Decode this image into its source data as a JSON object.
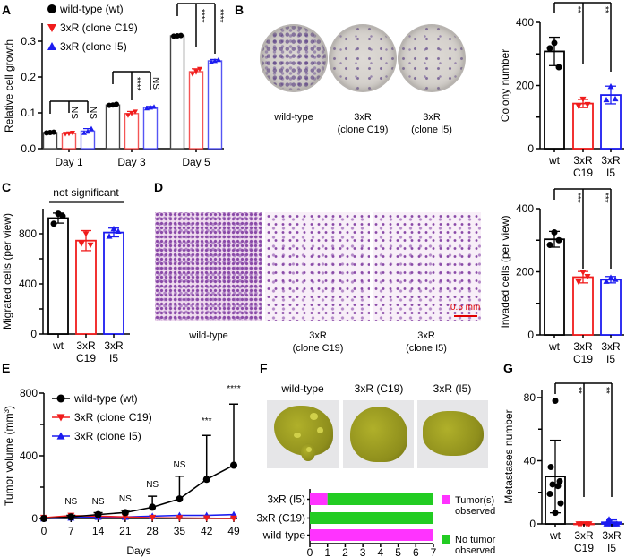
{
  "panel_labels": {
    "A": "A",
    "B": "B",
    "C": "C",
    "D": "D",
    "E": "E",
    "F": "F",
    "G": "G"
  },
  "images": {
    "B": {
      "labels": [
        [
          "wild-type"
        ],
        [
          "3xR",
          "(clone C19)"
        ],
        [
          "3xR",
          "(clone I5)"
        ]
      ]
    },
    "D": {
      "labels": [
        [
          "wild-type"
        ],
        [
          "3xR",
          "(clone C19)"
        ],
        [
          "3xR",
          "(clone I5)"
        ]
      ],
      "scale_bar": "0.5 mm",
      "scale_bar_color": "#e00000"
    },
    "F": {
      "titles": [
        "wild-type",
        "3xR (C19)",
        "3xR (I5)"
      ]
    }
  },
  "colors": {
    "wt": "#000000",
    "c19": "#f01c1c",
    "i5": "#1c1cf0",
    "tumor": "#ff33ff",
    "no_tumor": "#22cc22"
  },
  "chart_data": [
    {
      "id": "A",
      "type": "bar",
      "categories": [
        "Day 1",
        "Day 3",
        "Day 5"
      ],
      "ylabel": "Relative cell growth",
      "ylim": [
        0,
        0.35
      ],
      "yticks": [
        "0.0",
        "0.1",
        "0.2",
        "0.3"
      ],
      "ytick_values": [
        0,
        0.1,
        0.2,
        0.3
      ],
      "legend": "top-left",
      "series": [
        {
          "name": "wild-type (wt)",
          "color": "#000000",
          "marker": "circle",
          "values": [
            0.045,
            0.122,
            0.315
          ],
          "sd": [
            0.002,
            0.002,
            0.002
          ],
          "points": [
            [
              0.044,
              0.046,
              0.045
            ],
            [
              0.121,
              0.124,
              0.122
            ],
            [
              0.314,
              0.316,
              0.315
            ]
          ]
        },
        {
          "name": "3xR (clone C19)",
          "color": "#f01c1c",
          "marker": "triangle-down",
          "values": [
            0.042,
            0.098,
            0.215
          ],
          "sd": [
            0.003,
            0.006,
            0.008
          ],
          "points": [
            [
              0.041,
              0.044,
              0.042
            ],
            [
              0.093,
              0.103,
              0.099
            ],
            [
              0.208,
              0.222,
              0.216
            ]
          ]
        },
        {
          "name": "3xR (clone I5)",
          "color": "#1c1cf0",
          "marker": "triangle-up",
          "values": [
            0.049,
            0.115,
            0.245
          ],
          "sd": [
            0.007,
            0.003,
            0.004
          ],
          "points": [
            [
              0.044,
              0.056,
              0.048
            ],
            [
              0.113,
              0.117,
              0.115
            ],
            [
              0.242,
              0.248,
              0.245
            ]
          ]
        }
      ],
      "significance": [
        [
          "NS",
          "NS"
        ],
        [
          "****",
          "NS"
        ],
        [
          "****",
          "****"
        ]
      ]
    },
    {
      "id": "B",
      "type": "bar",
      "categories": [
        [
          "wt"
        ],
        [
          "3xR",
          "C19"
        ],
        [
          "3xR",
          "I5"
        ]
      ],
      "ylabel": "Colony number",
      "ylim": [
        0,
        400
      ],
      "yticks": [
        "0",
        "200",
        "400"
      ],
      "ytick_values": [
        0,
        200,
        400
      ],
      "colors": [
        "#000000",
        "#f01c1c",
        "#1c1cf0"
      ],
      "markers": [
        "circle",
        "triangle-down",
        "triangle-up"
      ],
      "values": [
        308,
        143,
        170
      ],
      "sd": [
        45,
        13,
        28
      ],
      "points": [
        [
          335,
          318,
          258
        ],
        [
          157,
          135,
          140
        ],
        [
          197,
          155,
          158
        ]
      ],
      "significance": [
        "**",
        "**"
      ]
    },
    {
      "id": "C",
      "type": "bar",
      "categories": [
        [
          "wt"
        ],
        [
          "3xR",
          "C19"
        ],
        [
          "3xR",
          "I5"
        ]
      ],
      "ylabel": "Migrated cells (per view)",
      "ylim": [
        0,
        1000
      ],
      "yticks": [
        "0",
        "400",
        "800"
      ],
      "ytick_values": [
        0,
        400,
        800
      ],
      "colors": [
        "#000000",
        "#f01c1c",
        "#1c1cf0"
      ],
      "markers": [
        "circle",
        "triangle-down",
        "triangle-up"
      ],
      "values": [
        925,
        745,
        810
      ],
      "sd": [
        40,
        80,
        35
      ],
      "points": [
        [
          960,
          880,
          940
        ],
        [
          800,
          720,
          710
        ],
        [
          840,
          780,
          820
        ]
      ],
      "significance_label": "not significant"
    },
    {
      "id": "D",
      "type": "bar",
      "categories": [
        [
          "wt"
        ],
        [
          "3xR",
          "C19"
        ],
        [
          "3xR",
          "I5"
        ]
      ],
      "ylabel": "Invaded cells (per view)",
      "ylim": [
        0,
        400
      ],
      "yticks": [
        "0",
        "200",
        "400"
      ],
      "ytick_values": [
        0,
        200,
        400
      ],
      "colors": [
        "#000000",
        "#f01c1c",
        "#1c1cf0"
      ],
      "markers": [
        "circle",
        "triangle-down",
        "triangle-up"
      ],
      "values": [
        303,
        183,
        175
      ],
      "sd": [
        25,
        18,
        10
      ],
      "points": [
        [
          325,
          285,
          300
        ],
        [
          198,
          168,
          185
        ],
        [
          182,
          170,
          176
        ]
      ],
      "significance": [
        "***",
        "***"
      ]
    },
    {
      "id": "E",
      "type": "line",
      "x": [
        0,
        7,
        14,
        21,
        28,
        35,
        42,
        49
      ],
      "xlabel": "Days",
      "ylabel": "Tumor volume (mm",
      "ylabel_sup": "3",
      "ylabel_end": ")",
      "ylim": [
        0,
        800
      ],
      "yticks": [
        "0",
        "400",
        "800"
      ],
      "ytick_values": [
        0,
        400,
        800
      ],
      "xticks": [
        "0",
        "7",
        "14",
        "21",
        "28",
        "35",
        "42",
        "49"
      ],
      "legend": "top-left",
      "series": [
        {
          "name": "wild-type (wt)",
          "color": "#000000",
          "marker": "circle",
          "values": [
            0,
            10,
            25,
            38,
            72,
            125,
            250,
            340
          ],
          "sd": [
            0,
            10,
            12,
            15,
            70,
            145,
            280,
            390
          ]
        },
        {
          "name": "3xR (clone C19)",
          "color": "#f01c1c",
          "marker": "triangle-down",
          "values": [
            5,
            18,
            15,
            10,
            5,
            3,
            2,
            0
          ]
        },
        {
          "name": "3xR (clone I5)",
          "color": "#1c1cf0",
          "marker": "triangle-up",
          "values": [
            0,
            5,
            10,
            10,
            15,
            20,
            20,
            25
          ]
        }
      ],
      "significance": [
        "",
        "NS",
        "NS",
        "NS",
        "NS",
        "NS",
        "***",
        "****"
      ]
    },
    {
      "id": "F",
      "type": "bar",
      "orientation": "horizontal",
      "stacked": true,
      "categories": [
        "3xR (I5)",
        "3xR (C19)",
        "wild-type"
      ],
      "xlim": [
        0,
        7
      ],
      "xticks": [
        "0",
        "1",
        "2",
        "3",
        "4",
        "5",
        "6",
        "7"
      ],
      "legend": "right",
      "series": [
        {
          "name": [
            "Tumor(s)",
            "observed"
          ],
          "color": "#ff33ff",
          "values": [
            1,
            0,
            7
          ]
        },
        {
          "name": [
            "No tumor",
            "observed"
          ],
          "color": "#22cc22",
          "values": [
            6,
            7,
            0
          ]
        }
      ]
    },
    {
      "id": "G",
      "type": "bar",
      "categories": [
        [
          "wt"
        ],
        [
          "3xR",
          "C19"
        ],
        [
          "3xR",
          "I5"
        ]
      ],
      "ylabel": "Metastases number",
      "ylim": [
        0,
        85
      ],
      "yticks": [
        "0",
        "40",
        "80"
      ],
      "ytick_values": [
        0,
        40,
        80
      ],
      "colors": [
        "#000000",
        "#f01c1c",
        "#1c1cf0"
      ],
      "markers": [
        "circle",
        "triangle-down",
        "triangle-up"
      ],
      "values": [
        30,
        0,
        1
      ],
      "sd": [
        23,
        0,
        1.5
      ],
      "points": [
        [
          78,
          36,
          27,
          25,
          24,
          19,
          13,
          7
        ],
        [
          0,
          0,
          0,
          0,
          0,
          0,
          0
        ],
        [
          0,
          0,
          0,
          3,
          0,
          0,
          0
        ]
      ],
      "significance": [
        "**",
        "**"
      ]
    }
  ]
}
